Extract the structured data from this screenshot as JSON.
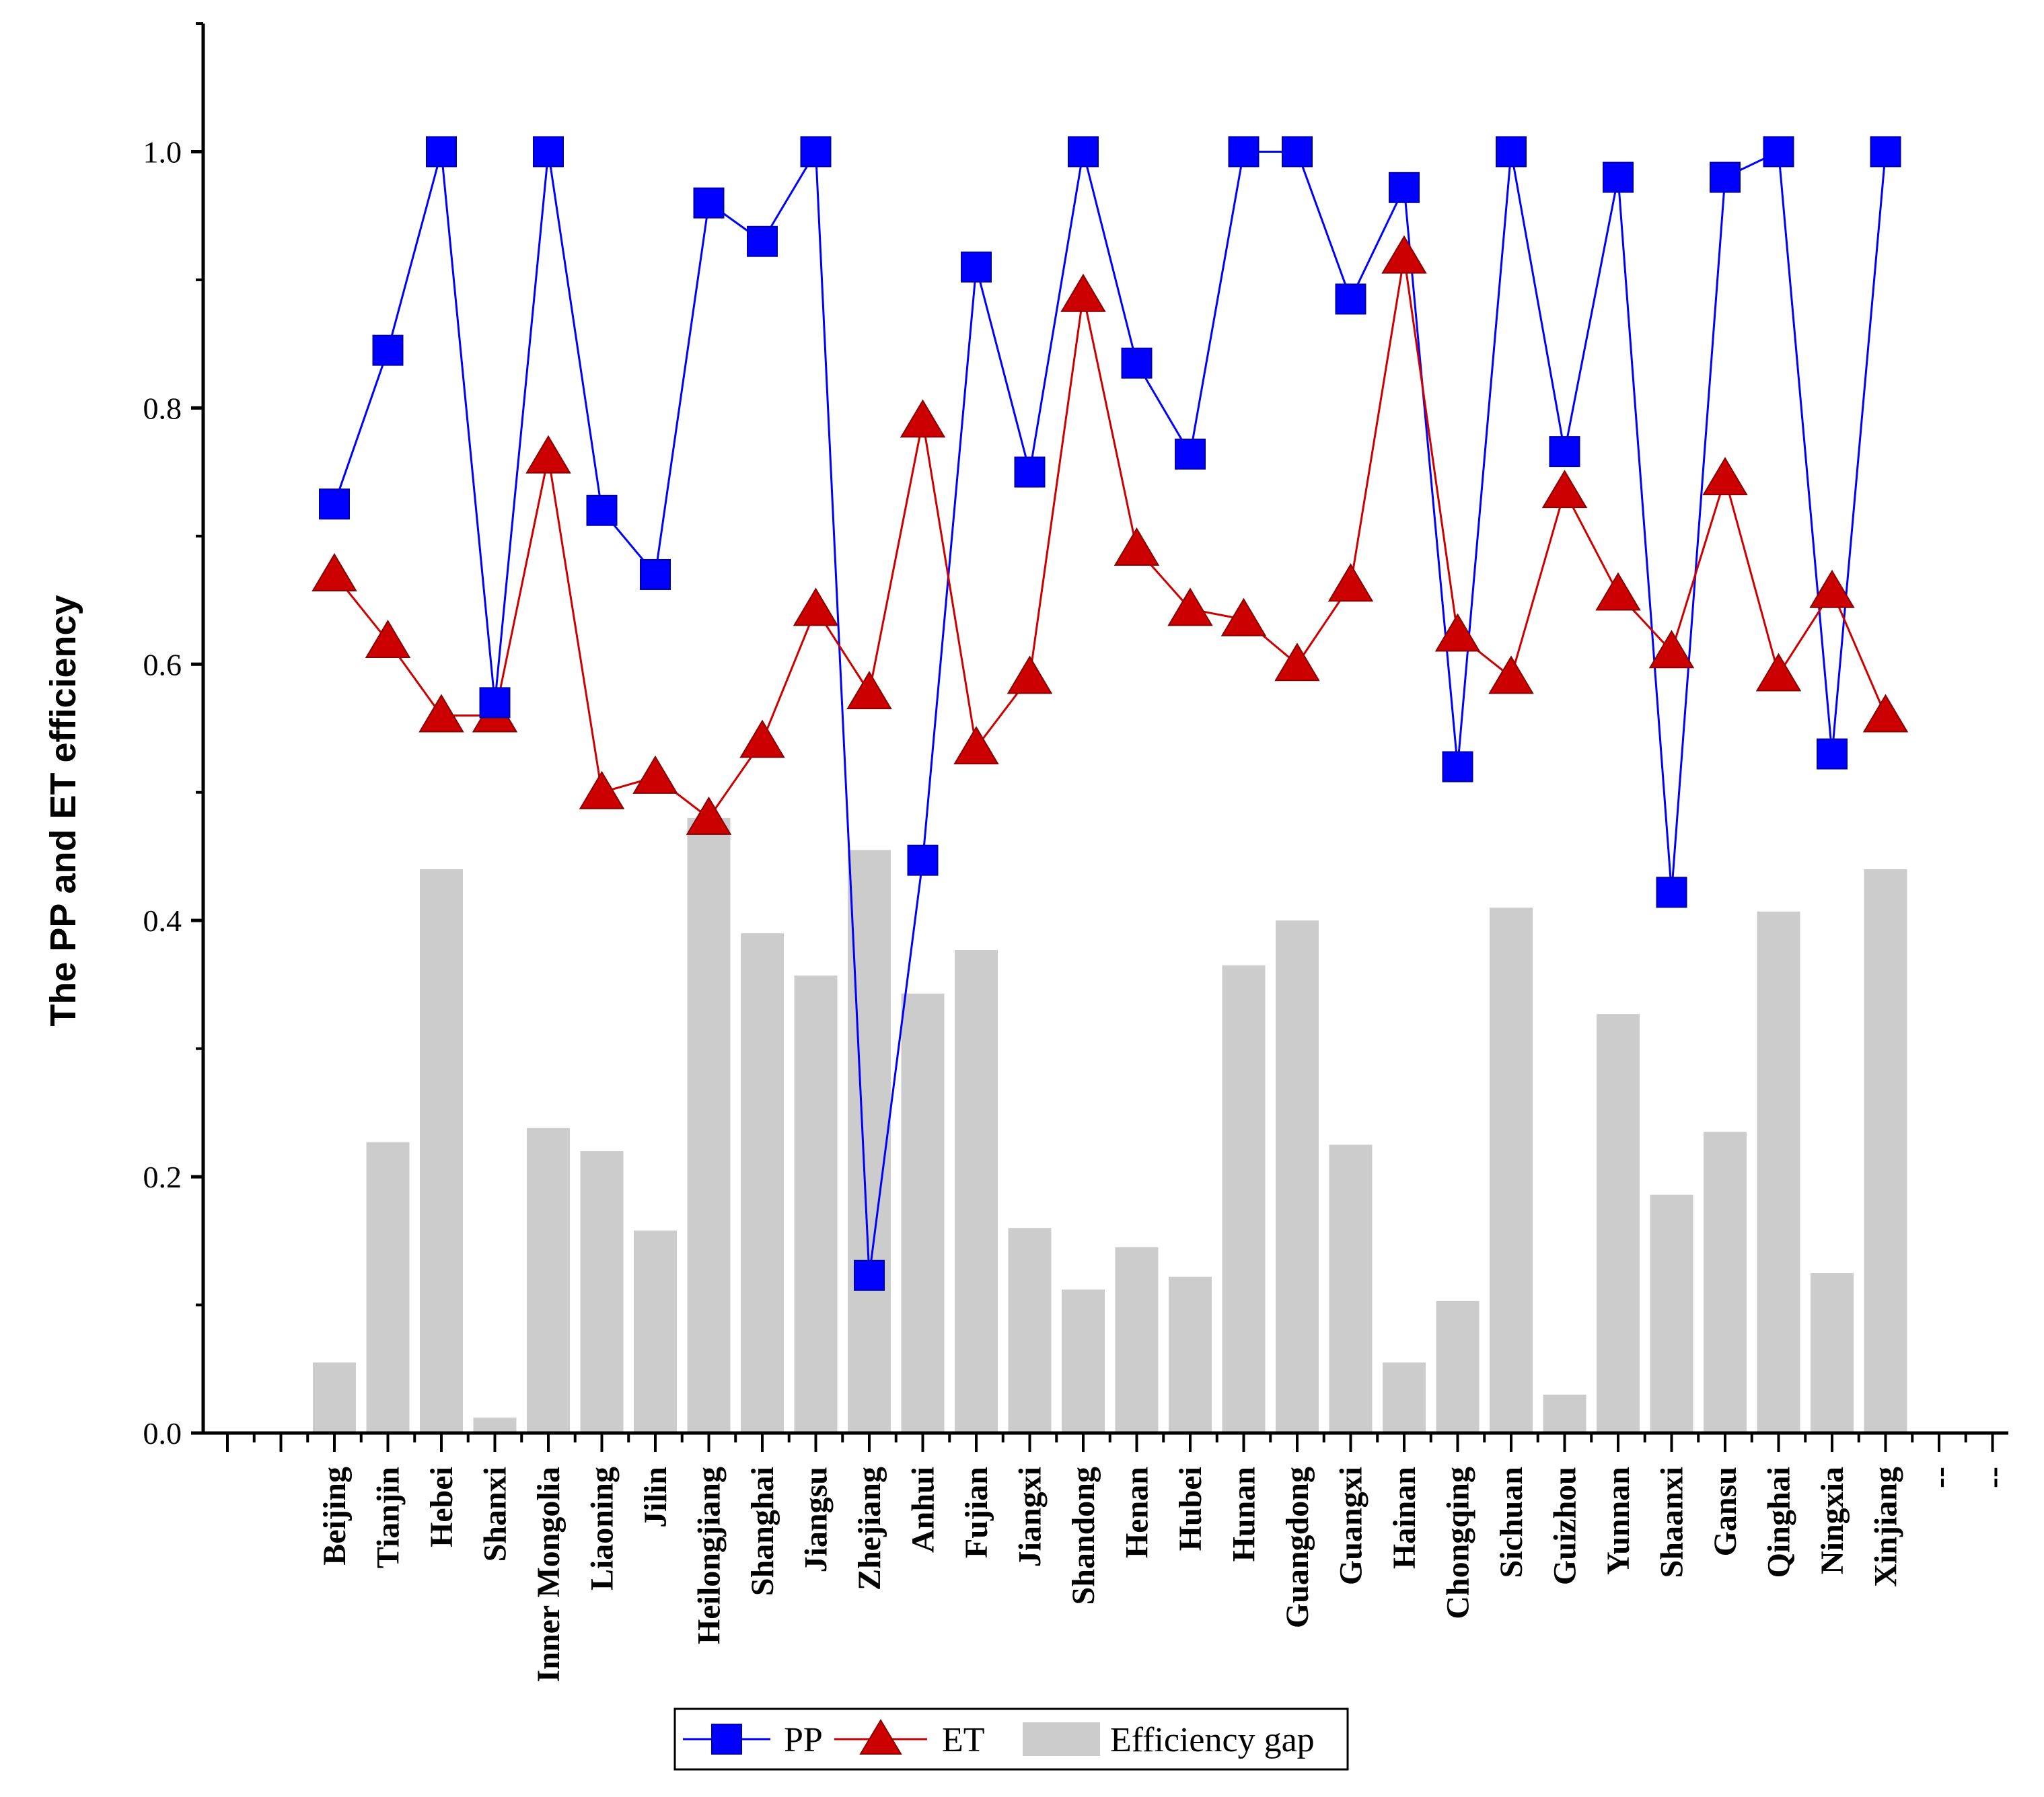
{
  "chart_data": {
    "type": "bar",
    "title": "",
    "xlabel": "",
    "ylabel": "The PP and ET efficiency",
    "ylim": [
      0,
      1.1
    ],
    "yticks": [
      "0.0",
      "0.2",
      "0.4",
      "0.6",
      "0.8",
      "1.0"
    ],
    "ytick_values": [
      0,
      0.2,
      0.4,
      0.6,
      0.8,
      1.0
    ],
    "grid": false,
    "legend_position": "bottom-center",
    "categories": [
      "Beijing",
      "Tianjin",
      "Hebei",
      "Shanxi",
      "Inner Mongolia",
      "Liaoning",
      "Jilin",
      "Heilongjiang",
      "Shanghai",
      "Jiangsu",
      "Zhejiang",
      "Anhui",
      "Fujian",
      "Jiangxi",
      "Shandong",
      "Henan",
      "Hubei",
      "Hunan",
      "Guangdong",
      "Guangxi",
      "Hainan",
      "Chongqing",
      "Sichuan",
      "Guizhou",
      "Yunnan",
      "Shaanxi",
      "Gansu",
      "Qinghai",
      "Ningxia",
      "Xinjiang"
    ],
    "trailing_labels": [
      "--",
      "--"
    ],
    "series": [
      {
        "name": "PP",
        "kind": "line",
        "color": "#0000ff",
        "marker": "square",
        "values": [
          0.725,
          0.845,
          1.0,
          0.57,
          1.0,
          0.72,
          0.67,
          0.96,
          0.93,
          1.0,
          0.123,
          0.447,
          0.91,
          0.75,
          1.0,
          0.835,
          0.764,
          1.0,
          1.0,
          0.885,
          0.972,
          0.52,
          1.0,
          0.766,
          0.98,
          0.422,
          0.98,
          1.0,
          0.53,
          1.0
        ]
      },
      {
        "name": "ET",
        "kind": "line",
        "color": "#cc0000",
        "marker": "triangle",
        "values": [
          0.67,
          0.618,
          0.56,
          0.56,
          0.762,
          0.5,
          0.512,
          0.48,
          0.54,
          0.643,
          0.578,
          0.79,
          0.535,
          0.59,
          0.888,
          0.69,
          0.643,
          0.635,
          0.6,
          0.662,
          0.918,
          0.623,
          0.59,
          0.735,
          0.655,
          0.61,
          0.745,
          0.592,
          0.657,
          0.56
        ]
      },
      {
        "name": "Efficiency gap",
        "kind": "bar",
        "color": "#cccccc",
        "values": [
          0.055,
          0.227,
          0.44,
          0.012,
          0.238,
          0.22,
          0.158,
          0.48,
          0.39,
          0.357,
          0.455,
          0.343,
          0.377,
          0.16,
          0.112,
          0.145,
          0.122,
          0.365,
          0.4,
          0.225,
          0.055,
          0.103,
          0.41,
          0.03,
          0.327,
          0.186,
          0.235,
          0.407,
          0.125,
          0.44
        ]
      }
    ]
  }
}
